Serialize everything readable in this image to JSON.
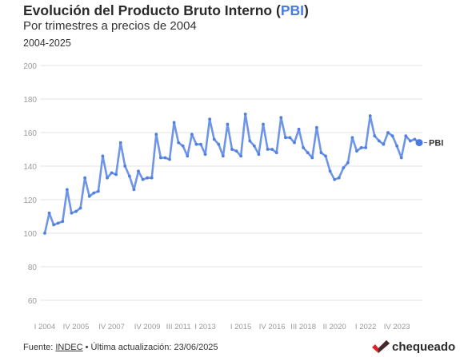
{
  "header": {
    "title_main": "Evolución del Producto Bruto Interno (",
    "title_highlight": "PBI",
    "title_end": ")",
    "subtitle": "Por trimestres a precios de 2004",
    "period": "2004-2025"
  },
  "footer": {
    "source_prefix": "Fuente: ",
    "source_name": "INDEC",
    "source_suffix": " • Última actualización: 23/06/2025",
    "brand": "chequeado"
  },
  "colors": {
    "line": "#6f95e8",
    "marker": "#4a7be0",
    "grid": "#e3e3e3",
    "axis_text": "#9a9a9a",
    "brand_red": "#d8232a"
  },
  "chart_data": {
    "type": "line",
    "title": "Evolución del Producto Bruto Interno (PBI)",
    "subtitle": "Por trimestres a precios de 2004",
    "ylim": [
      50,
      200
    ],
    "yticks": [
      60,
      80,
      100,
      120,
      140,
      160,
      180,
      200
    ],
    "grid": true,
    "xticks": [
      "I 2004",
      "IV 2005",
      "IV 2007",
      "IV 2009",
      "III 2011",
      "I 2013",
      "I 2015",
      "IV 2016",
      "III 2018",
      "II 2020",
      "I 2022",
      "IV 2023"
    ],
    "series": [
      {
        "name": "PBI",
        "end_label": "PBI",
        "x": [
          "I 2004",
          "II 2004",
          "III 2004",
          "IV 2004",
          "I 2005",
          "II 2005",
          "III 2005",
          "IV 2005",
          "I 2006",
          "II 2006",
          "III 2006",
          "IV 2006",
          "I 2007",
          "II 2007",
          "III 2007",
          "IV 2007",
          "I 2008",
          "II 2008",
          "III 2008",
          "IV 2008",
          "I 2009",
          "II 2009",
          "III 2009",
          "IV 2009",
          "I 2010",
          "II 2010",
          "III 2010",
          "IV 2010",
          "I 2011",
          "II 2011",
          "III 2011",
          "IV 2011",
          "I 2012",
          "II 2012",
          "III 2012",
          "IV 2012",
          "I 2013",
          "II 2013",
          "III 2013",
          "IV 2013",
          "I 2014",
          "II 2014",
          "III 2014",
          "IV 2014",
          "I 2015",
          "II 2015",
          "III 2015",
          "IV 2015",
          "I 2016",
          "II 2016",
          "III 2016",
          "IV 2016",
          "I 2017",
          "II 2017",
          "III 2017",
          "IV 2017",
          "I 2018",
          "II 2018",
          "III 2018",
          "IV 2018",
          "I 2019",
          "II 2019",
          "III 2019",
          "IV 2019",
          "I 2020",
          "II 2020",
          "III 2020",
          "IV 2020",
          "I 2021",
          "II 2021",
          "III 2021",
          "IV 2021",
          "I 2022",
          "II 2022",
          "III 2022",
          "IV 2022",
          "I 2023",
          "II 2023",
          "III 2023",
          "IV 2023",
          "I 2024",
          "II 2024",
          "III 2024",
          "IV 2024",
          "I 2025"
        ],
        "values": [
          100,
          112,
          105,
          106,
          107,
          126,
          112,
          113,
          115,
          133,
          122,
          124,
          125,
          146,
          133,
          136,
          135,
          154,
          140,
          134,
          126,
          137,
          132,
          133,
          133,
          159,
          145,
          145,
          144,
          166,
          154,
          152,
          146,
          159,
          153,
          153,
          147,
          168,
          156,
          153,
          146,
          165,
          150,
          149,
          146,
          171,
          155,
          152,
          147,
          165,
          150,
          150,
          148,
          169,
          157,
          157,
          154,
          162,
          151,
          148,
          145,
          163,
          148,
          146,
          137,
          132,
          133,
          139,
          142,
          157,
          149,
          151,
          151,
          170,
          158,
          155,
          153,
          160,
          158,
          152,
          145,
          158,
          155,
          156,
          154
        ]
      }
    ]
  }
}
